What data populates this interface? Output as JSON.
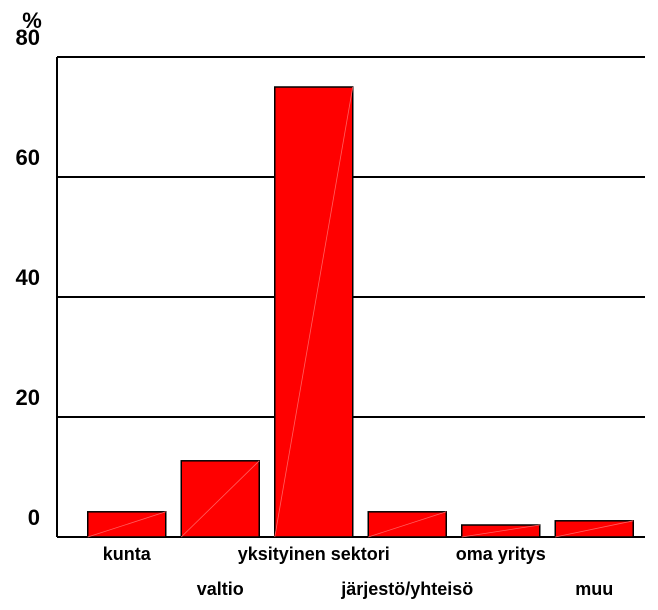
{
  "chart_data": {
    "type": "bar",
    "y_label": "%",
    "categories": [
      "kunta",
      "valtio",
      "yksityinen sektori",
      "järjestö/yhteisö",
      "oma yritys",
      "muu"
    ],
    "values": [
      4.2,
      12.7,
      75,
      4.2,
      2,
      2.7
    ],
    "color": "#ff0000",
    "ylim": [
      0,
      80
    ],
    "yticks": [
      0,
      20,
      40,
      60,
      80
    ],
    "grid": true
  }
}
